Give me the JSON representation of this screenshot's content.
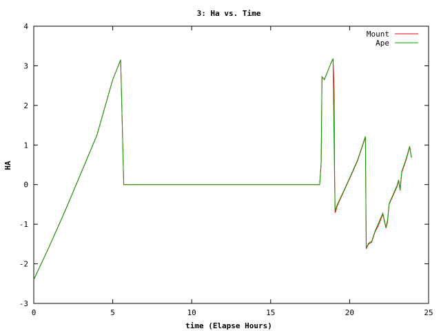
{
  "chart_data": {
    "type": "line",
    "title": "3: Ha vs. Time",
    "xlabel": "time (Elapse Hours)",
    "ylabel": "HA",
    "xlim": [
      0,
      25
    ],
    "ylim": [
      -3,
      4
    ],
    "x_ticks": [
      0,
      5,
      10,
      15,
      20,
      25
    ],
    "y_ticks": [
      -3,
      -2,
      -1,
      0,
      1,
      2,
      3,
      4
    ],
    "grid": false,
    "legend_position": "top-right",
    "series": [
      {
        "name": "Mount",
        "color": "#ff0000",
        "points": [
          [
            0.0,
            -2.4
          ],
          [
            1.0,
            -1.55
          ],
          [
            2.0,
            -0.65
          ],
          [
            3.0,
            0.3
          ],
          [
            4.0,
            1.25
          ],
          [
            5.0,
            2.65
          ],
          [
            5.5,
            3.15
          ],
          [
            5.7,
            0.0
          ],
          [
            10.0,
            0.0
          ],
          [
            15.0,
            0.0
          ],
          [
            18.1,
            0.0
          ],
          [
            18.2,
            0.55
          ],
          [
            18.25,
            2.72
          ],
          [
            18.4,
            2.65
          ],
          [
            18.6,
            2.85
          ],
          [
            18.85,
            3.1
          ],
          [
            18.95,
            3.18
          ],
          [
            19.02,
            2.45
          ],
          [
            19.05,
            0.3
          ],
          [
            19.08,
            -0.7
          ],
          [
            19.12,
            -0.68
          ],
          [
            19.2,
            -0.55
          ],
          [
            19.6,
            -0.2
          ],
          [
            20.0,
            0.15
          ],
          [
            20.5,
            0.6
          ],
          [
            21.0,
            1.2
          ],
          [
            21.05,
            -1.62
          ],
          [
            21.2,
            -1.5
          ],
          [
            21.4,
            -1.45
          ],
          [
            21.6,
            -1.2
          ],
          [
            21.8,
            -1.05
          ],
          [
            22.1,
            -0.75
          ],
          [
            22.3,
            -1.1
          ],
          [
            22.4,
            -0.95
          ],
          [
            22.5,
            -0.5
          ],
          [
            23.0,
            -0.05
          ],
          [
            23.1,
            0.1
          ],
          [
            23.2,
            -0.15
          ],
          [
            23.3,
            0.3
          ],
          [
            23.6,
            0.65
          ],
          [
            23.8,
            0.95
          ],
          [
            23.92,
            0.68
          ]
        ]
      },
      {
        "name": "Ape",
        "color": "#00a000",
        "points": [
          [
            0.0,
            -2.4
          ],
          [
            1.0,
            -1.55
          ],
          [
            2.0,
            -0.65
          ],
          [
            3.0,
            0.3
          ],
          [
            4.0,
            1.25
          ],
          [
            5.0,
            2.65
          ],
          [
            5.5,
            3.15
          ],
          [
            5.7,
            0.0
          ],
          [
            10.0,
            0.0
          ],
          [
            15.0,
            0.0
          ],
          [
            18.1,
            0.0
          ],
          [
            18.2,
            0.55
          ],
          [
            18.25,
            2.72
          ],
          [
            18.4,
            2.65
          ],
          [
            18.6,
            2.85
          ],
          [
            18.85,
            3.1
          ],
          [
            18.95,
            3.18
          ],
          [
            19.02,
            0.95
          ],
          [
            19.05,
            0.05
          ],
          [
            19.08,
            -0.65
          ],
          [
            19.12,
            -0.62
          ],
          [
            19.2,
            -0.52
          ],
          [
            19.6,
            -0.18
          ],
          [
            20.0,
            0.17
          ],
          [
            20.5,
            0.62
          ],
          [
            21.0,
            1.22
          ],
          [
            21.05,
            -1.6
          ],
          [
            21.2,
            -1.48
          ],
          [
            21.4,
            -1.43
          ],
          [
            21.6,
            -1.18
          ],
          [
            21.8,
            -1.0
          ],
          [
            22.1,
            -0.72
          ],
          [
            22.3,
            -1.08
          ],
          [
            22.4,
            -0.9
          ],
          [
            22.5,
            -0.48
          ],
          [
            23.0,
            -0.02
          ],
          [
            23.1,
            0.12
          ],
          [
            23.2,
            -0.12
          ],
          [
            23.3,
            0.33
          ],
          [
            23.6,
            0.68
          ],
          [
            23.8,
            0.97
          ],
          [
            23.92,
            0.68
          ]
        ]
      }
    ]
  }
}
